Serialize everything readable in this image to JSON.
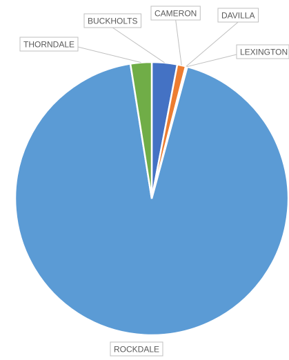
{
  "chart_data": {
    "type": "pie",
    "title": "",
    "categories": [
      "BUCKHOLTS",
      "CAMERON",
      "DAVILLA",
      "LEXINGTON",
      "ROCKDALE",
      "THORNDALE"
    ],
    "values": [
      3.0,
      1.0,
      0.1,
      0.1,
      93.3,
      2.5
    ],
    "colors": [
      "#4472c4",
      "#ed7d31",
      "#a5a5a5",
      "#ffc000",
      "#5b9bd5",
      "#70ad47"
    ],
    "legend": "none",
    "data_labels": "category"
  }
}
